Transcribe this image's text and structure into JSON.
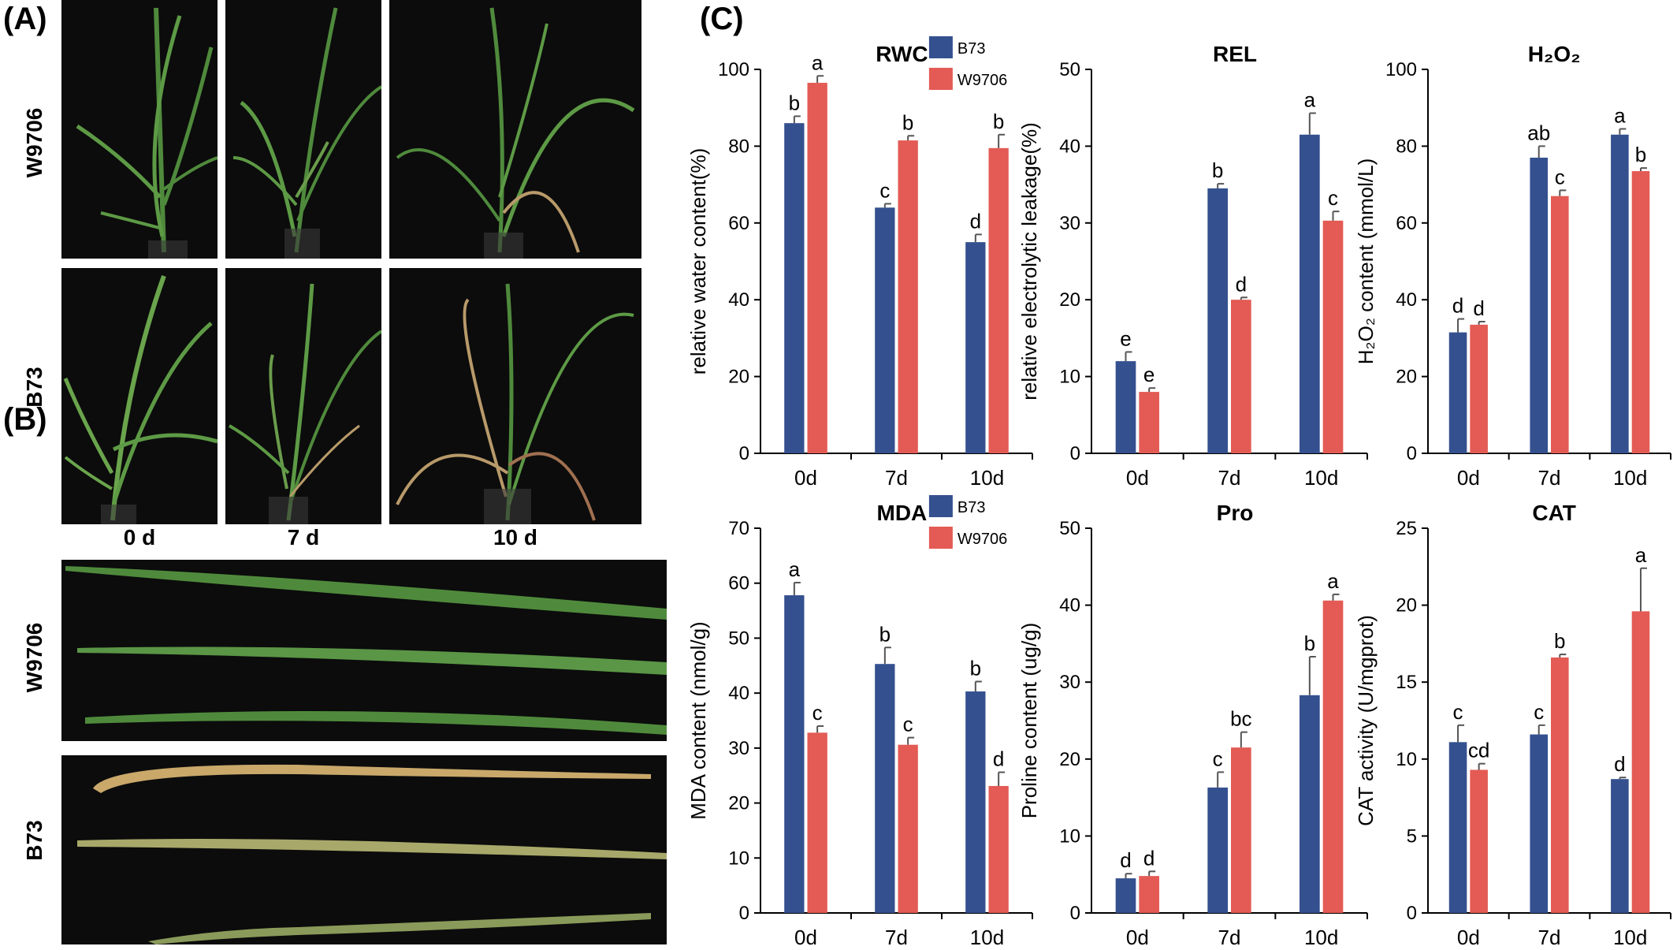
{
  "panels": {
    "a_label": "(A)",
    "b_label": "(B)",
    "c_label": "(C)",
    "a_rows": [
      "W9706",
      "B73"
    ],
    "a_cols": [
      "0 d",
      "7 d",
      "10 d"
    ],
    "b_rows": [
      "W9706",
      "B73"
    ]
  },
  "colors": {
    "b73": "#34508f",
    "w9706": "#e35b54",
    "photo_bg": "#0c0c0c",
    "leaf_green": "#4f8a3c",
    "leaf_dry": "#b89a6a"
  },
  "legend": {
    "series": [
      "B73",
      "W9706"
    ]
  },
  "chart_data": [
    {
      "type": "bar",
      "title": "RWC",
      "ylabel": "relative water content(%)",
      "categories": [
        "0d",
        "7d",
        "10d"
      ],
      "ylim": [
        0,
        100
      ],
      "yticks": [
        0,
        20,
        40,
        60,
        80,
        100
      ],
      "series": [
        {
          "name": "B73",
          "values": [
            86,
            64,
            55
          ],
          "errors": [
            1.8,
            1.0,
            2.0
          ],
          "letters": [
            "b",
            "c",
            "d"
          ]
        },
        {
          "name": "W9706",
          "values": [
            96.5,
            81.5,
            79.5
          ],
          "errors": [
            1.8,
            1.2,
            3.5
          ],
          "letters": [
            "a",
            "b",
            "b"
          ]
        }
      ],
      "legend": true
    },
    {
      "type": "bar",
      "title": "REL",
      "ylabel": "relative electrolytic leakage(%)",
      "categories": [
        "0d",
        "7d",
        "10d"
      ],
      "ylim": [
        0,
        50
      ],
      "yticks": [
        0,
        10,
        20,
        30,
        40,
        50
      ],
      "series": [
        {
          "name": "B73",
          "values": [
            12,
            34.5,
            41.5
          ],
          "errors": [
            1.2,
            0.6,
            2.8
          ],
          "letters": [
            "e",
            "b",
            "a"
          ]
        },
        {
          "name": "W9706",
          "values": [
            8,
            20,
            30.3
          ],
          "errors": [
            0.5,
            0.3,
            1.2
          ],
          "letters": [
            "e",
            "d",
            "c"
          ]
        }
      ],
      "legend": false
    },
    {
      "type": "bar",
      "title": "H₂O₂",
      "ylabel": "H₂O₂ content (mmol/L)",
      "categories": [
        "0d",
        "7d",
        "10d"
      ],
      "ylim": [
        0,
        100
      ],
      "yticks": [
        0,
        20,
        40,
        60,
        80,
        100
      ],
      "series": [
        {
          "name": "B73",
          "values": [
            31.5,
            77,
            83
          ],
          "errors": [
            3.5,
            3.0,
            1.5
          ],
          "letters": [
            "d",
            "ab",
            "a"
          ]
        },
        {
          "name": "W9706",
          "values": [
            33.5,
            67,
            73.5
          ],
          "errors": [
            0.8,
            1.5,
            0.8
          ],
          "letters": [
            "d",
            "c",
            "b"
          ]
        }
      ],
      "legend": false
    },
    {
      "type": "bar",
      "title": "MDA",
      "ylabel": "MDA content (nmol/g)",
      "categories": [
        "0d",
        "7d",
        "10d"
      ],
      "ylim": [
        0,
        70
      ],
      "yticks": [
        0,
        10,
        20,
        30,
        40,
        50,
        60,
        70
      ],
      "series": [
        {
          "name": "B73",
          "values": [
            57.8,
            45.3,
            40.3
          ],
          "errors": [
            2.3,
            3.0,
            1.8
          ],
          "letters": [
            "a",
            "b",
            "b"
          ]
        },
        {
          "name": "W9706",
          "values": [
            32.8,
            30.6,
            23.1
          ],
          "errors": [
            1.2,
            1.3,
            2.5
          ],
          "letters": [
            "c",
            "c",
            "d"
          ]
        }
      ],
      "legend": true
    },
    {
      "type": "bar",
      "title": "Pro",
      "ylabel": "Proline content (ug/g)",
      "categories": [
        "0d",
        "7d",
        "10d"
      ],
      "ylim": [
        0,
        50
      ],
      "yticks": [
        0,
        10,
        20,
        30,
        40,
        50
      ],
      "series": [
        {
          "name": "B73",
          "values": [
            4.5,
            16.3,
            28.3
          ],
          "errors": [
            0.6,
            2.0,
            5.0
          ],
          "letters": [
            "d",
            "c",
            "b"
          ]
        },
        {
          "name": "W9706",
          "values": [
            4.8,
            21.5,
            40.6
          ],
          "errors": [
            0.6,
            2.0,
            0.8
          ],
          "letters": [
            "d",
            "bc",
            "a"
          ]
        }
      ],
      "legend": false
    },
    {
      "type": "bar",
      "title": "CAT",
      "ylabel": "CAT activity (U/mgprot)",
      "categories": [
        "0d",
        "7d",
        "10d"
      ],
      "ylim": [
        0,
        25
      ],
      "yticks": [
        0,
        5,
        10,
        15,
        20,
        25
      ],
      "series": [
        {
          "name": "B73",
          "values": [
            11.1,
            11.6,
            8.7
          ],
          "errors": [
            1.1,
            0.6,
            0.1
          ],
          "letters": [
            "c",
            "c",
            "d"
          ]
        },
        {
          "name": "W9706",
          "values": [
            9.3,
            16.6,
            19.6
          ],
          "errors": [
            0.4,
            0.2,
            2.8
          ],
          "letters": [
            "cd",
            "b",
            "a"
          ]
        }
      ],
      "legend": false
    }
  ]
}
